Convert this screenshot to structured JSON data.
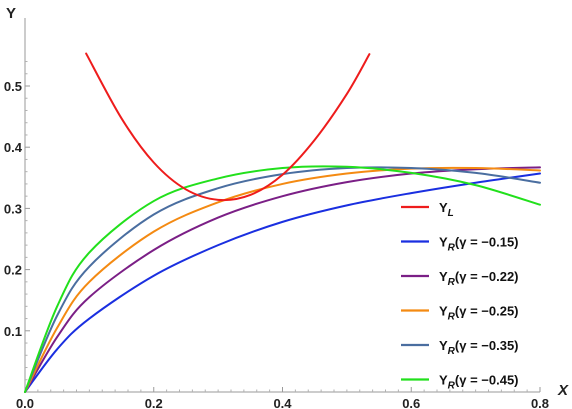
{
  "chart_data": {
    "type": "line",
    "xlabel": "X",
    "ylabel": "Y",
    "xlim": [
      0,
      0.8
    ],
    "ylim": [
      0,
      0.55
    ],
    "x_ticks": [
      "0.0",
      "0.2",
      "0.4",
      "0.6",
      "0.8"
    ],
    "y_ticks": [
      "0.1",
      "0.2",
      "0.3",
      "0.4",
      "0.5"
    ],
    "grid": false,
    "legend_position": "right",
    "series": [
      {
        "name": "Y_L",
        "legend_main": "Y",
        "legend_sub": "L",
        "legend_tail": "",
        "color": "#ee1c1c",
        "x": [
          0.095,
          0.15,
          0.2,
          0.25,
          0.3,
          0.35,
          0.4,
          0.45,
          0.5,
          0.535
        ],
        "y": [
          0.553,
          0.447,
          0.375,
          0.331,
          0.314,
          0.322,
          0.355,
          0.412,
          0.487,
          0.552
        ]
      },
      {
        "name": "Y_R(γ = −0.15)",
        "legend_main": "Y",
        "legend_sub": "R",
        "legend_tail": "(γ = −0.15)",
        "color": "#1a2fe0",
        "x": [
          0,
          0.05,
          0.1,
          0.2,
          0.3,
          0.4,
          0.5,
          0.6,
          0.7,
          0.8
        ],
        "y": [
          0,
          0.07,
          0.12,
          0.19,
          0.24,
          0.278,
          0.305,
          0.325,
          0.342,
          0.357
        ]
      },
      {
        "name": "Y_R(γ = −0.22)",
        "legend_main": "Y",
        "legend_sub": "R",
        "legend_tail": "(γ = −0.22)",
        "color": "#7b1f86",
        "x": [
          0,
          0.05,
          0.1,
          0.2,
          0.3,
          0.4,
          0.5,
          0.6,
          0.7,
          0.8
        ],
        "y": [
          0,
          0.09,
          0.155,
          0.232,
          0.285,
          0.32,
          0.343,
          0.357,
          0.364,
          0.367
        ]
      },
      {
        "name": "Y_R(γ = −0.25)",
        "legend_main": "Y",
        "legend_sub": "R",
        "legend_tail": "(γ = −0.25)",
        "color": "#f48a12",
        "x": [
          0,
          0.05,
          0.1,
          0.2,
          0.3,
          0.4,
          0.5,
          0.6,
          0.7,
          0.8
        ],
        "y": [
          0,
          0.105,
          0.18,
          0.262,
          0.31,
          0.34,
          0.357,
          0.365,
          0.366,
          0.362
        ]
      },
      {
        "name": "Y_R(γ = −0.35)",
        "legend_main": "Y",
        "legend_sub": "R",
        "legend_tail": "(γ = −0.35)",
        "color": "#4a6ea0",
        "x": [
          0,
          0.05,
          0.1,
          0.2,
          0.3,
          0.4,
          0.5,
          0.6,
          0.7,
          0.8
        ],
        "y": [
          0,
          0.125,
          0.205,
          0.29,
          0.333,
          0.356,
          0.366,
          0.366,
          0.358,
          0.342
        ]
      },
      {
        "name": "Y_R(γ = −0.45)",
        "legend_main": "Y",
        "legend_sub": "R",
        "legend_tail": "(γ = −0.45)",
        "color": "#22e01c",
        "x": [
          0,
          0.05,
          0.1,
          0.2,
          0.3,
          0.4,
          0.5,
          0.6,
          0.7,
          0.8
        ],
        "y": [
          0,
          0.14,
          0.228,
          0.312,
          0.349,
          0.366,
          0.368,
          0.358,
          0.338,
          0.306
        ]
      }
    ]
  }
}
